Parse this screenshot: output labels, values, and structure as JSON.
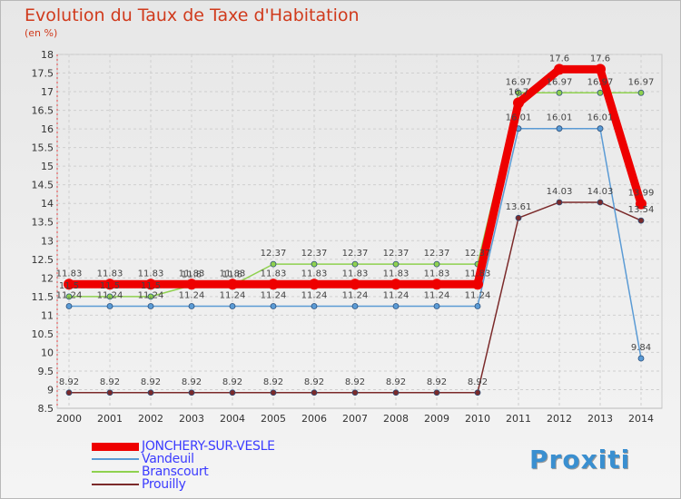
{
  "header": {
    "title": "Evolution du Taux de Taxe d'Habitation",
    "unit": "(en %)"
  },
  "logo": {
    "text": "Proxiti"
  },
  "chart_data": {
    "type": "line",
    "title": "Evolution du Taux de Taxe d'Habitation",
    "ylabel": "(en %)",
    "xlabel": "",
    "categories": [
      "2000",
      "2001",
      "2002",
      "2003",
      "2004",
      "2005",
      "2006",
      "2007",
      "2008",
      "2009",
      "2010",
      "2011",
      "2012",
      "2013",
      "2014"
    ],
    "ylim": [
      8.5,
      18
    ],
    "yticks": [
      8.5,
      9,
      9.5,
      10,
      10.5,
      11,
      11.5,
      12,
      12.5,
      13,
      13.5,
      14,
      14.5,
      15,
      15.5,
      16,
      16.5,
      17,
      17.5,
      18
    ],
    "ytick_labels": [
      "8.5",
      "9",
      "9.5",
      "10",
      "10.5",
      "11",
      "11.5",
      "12",
      "12.5",
      "13",
      "13.5",
      "14",
      "14.5",
      "15",
      "15.5",
      "16",
      "16.5",
      "17",
      "17.5",
      "18"
    ],
    "grid": true,
    "legend_position": "bottom-left",
    "series": [
      {
        "name": "JONCHERY-SUR-VESLE",
        "color": "#ee0000",
        "values": [
          11.83,
          11.83,
          11.83,
          11.83,
          11.83,
          11.83,
          11.83,
          11.83,
          11.83,
          11.83,
          11.83,
          16.7,
          17.6,
          17.6,
          13.99
        ],
        "labels": [
          "11.83",
          "11.83",
          "11.83",
          "11.83",
          "11.83",
          "11.83",
          "11.83",
          "11.83",
          "11.83",
          "11.83",
          "11.83",
          "16.7",
          "17.6",
          "17.6",
          "13.99"
        ]
      },
      {
        "name": "Vandeuil",
        "color": "#5b9bd5",
        "values": [
          11.24,
          11.24,
          11.24,
          11.24,
          11.24,
          11.24,
          11.24,
          11.24,
          11.24,
          11.24,
          11.24,
          16.01,
          16.01,
          16.01,
          9.84
        ],
        "labels": [
          "11.24",
          "11.24",
          "11.24",
          "11.24",
          "11.24",
          "11.24",
          "11.24",
          "11.24",
          "11.24",
          "11.24",
          "11.24",
          "16.01",
          "16.01",
          "16.01",
          "9.84"
        ]
      },
      {
        "name": "Branscourt",
        "color": "#8fd14f",
        "values": [
          11.5,
          11.5,
          11.5,
          11.8,
          11.8,
          12.37,
          12.37,
          12.37,
          12.37,
          12.37,
          12.37,
          16.97,
          16.97,
          16.97,
          16.97
        ],
        "labels": [
          "11.5",
          "11.5",
          "11.5",
          "11.8",
          "11.8",
          "12.37",
          "12.37",
          "12.37",
          "12.37",
          "12.37",
          "12.37",
          "16.97",
          "16.97",
          "16.97",
          "16.97"
        ]
      },
      {
        "name": "Prouilly",
        "color": "#7b2a2a",
        "values": [
          8.92,
          8.92,
          8.92,
          8.92,
          8.92,
          8.92,
          8.92,
          8.92,
          8.92,
          8.92,
          8.92,
          13.61,
          14.03,
          14.03,
          13.54
        ],
        "labels": [
          "8.92",
          "8.92",
          "8.92",
          "8.92",
          "8.92",
          "8.92",
          "8.92",
          "8.92",
          "8.92",
          "8.92",
          "8.92",
          "13.61",
          "14.03",
          "14.03",
          "13.54"
        ]
      }
    ]
  }
}
